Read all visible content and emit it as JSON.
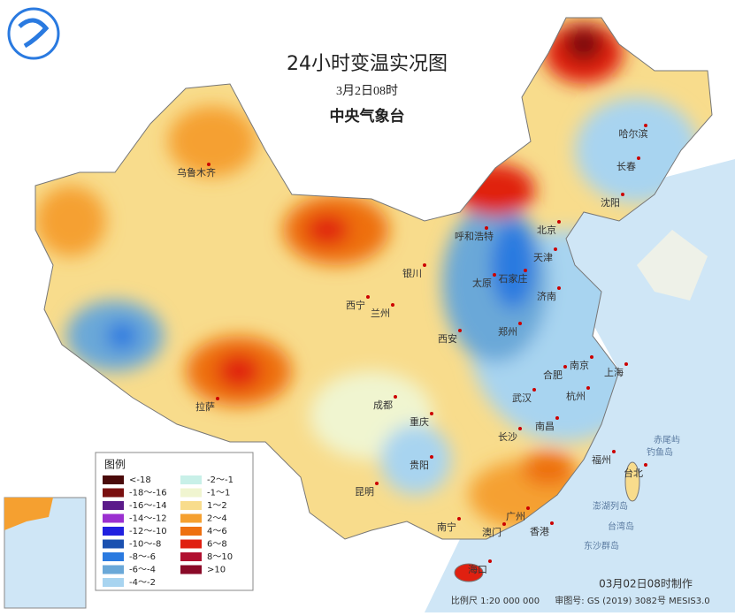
{
  "header": {
    "title": "24小时变温实况图",
    "time": "3月2日08时",
    "agency": "中央气象台"
  },
  "legend": {
    "title": "图例",
    "items": [
      {
        "label": "<-18",
        "color": "#4a0a0a"
      },
      {
        "label": "-18～-16",
        "color": "#7a1010"
      },
      {
        "label": "-16～-14",
        "color": "#5b1a8a"
      },
      {
        "label": "-14～-12",
        "color": "#9b30d0"
      },
      {
        "label": "-12～-10",
        "color": "#2020e0"
      },
      {
        "label": "-10～-8",
        "color": "#1a50b0"
      },
      {
        "label": "-8～-6",
        "color": "#2a7ae0"
      },
      {
        "label": "-6～-4",
        "color": "#6aa8d8"
      },
      {
        "label": "-4～-2",
        "color": "#a8d4f0"
      },
      {
        "label": "-2～-1",
        "color": "#c8f0e8"
      },
      {
        "label": "-1～1",
        "color": "#f0f5d0"
      },
      {
        "label": "1～2",
        "color": "#f8dc8c"
      },
      {
        "label": "2～4",
        "color": "#f5a030"
      },
      {
        "label": "4～6",
        "color": "#ee7010"
      },
      {
        "label": "6～8",
        "color": "#e02010"
      },
      {
        "label": "8～10",
        "color": "#b01030"
      },
      {
        "label": ">10",
        "color": "#8a0a28"
      }
    ]
  },
  "cities": [
    "乌鲁木齐",
    "哈尔滨",
    "长春",
    "沈阳",
    "北京",
    "天津",
    "呼和浩特",
    "石家庄",
    "太原",
    "济南",
    "银川",
    "西宁",
    "兰州",
    "郑州",
    "西安",
    "南京",
    "上海",
    "合肥",
    "杭州",
    "武汉",
    "成都",
    "重庆",
    "南昌",
    "长沙",
    "福州",
    "台北",
    "贵阳",
    "昆明",
    "拉萨",
    "南宁",
    "广州",
    "澳门",
    "香港",
    "海口"
  ],
  "islands": [
    "赤尾屿",
    "钓鱼岛",
    "澎湖列岛",
    "台湾岛",
    "东沙群岛"
  ],
  "footer": {
    "made": "03月02日08时制作",
    "scale": "比例尺 1:20 000 000",
    "approval": "审图号: GS (2019) 3082号 MESIS3.0"
  }
}
